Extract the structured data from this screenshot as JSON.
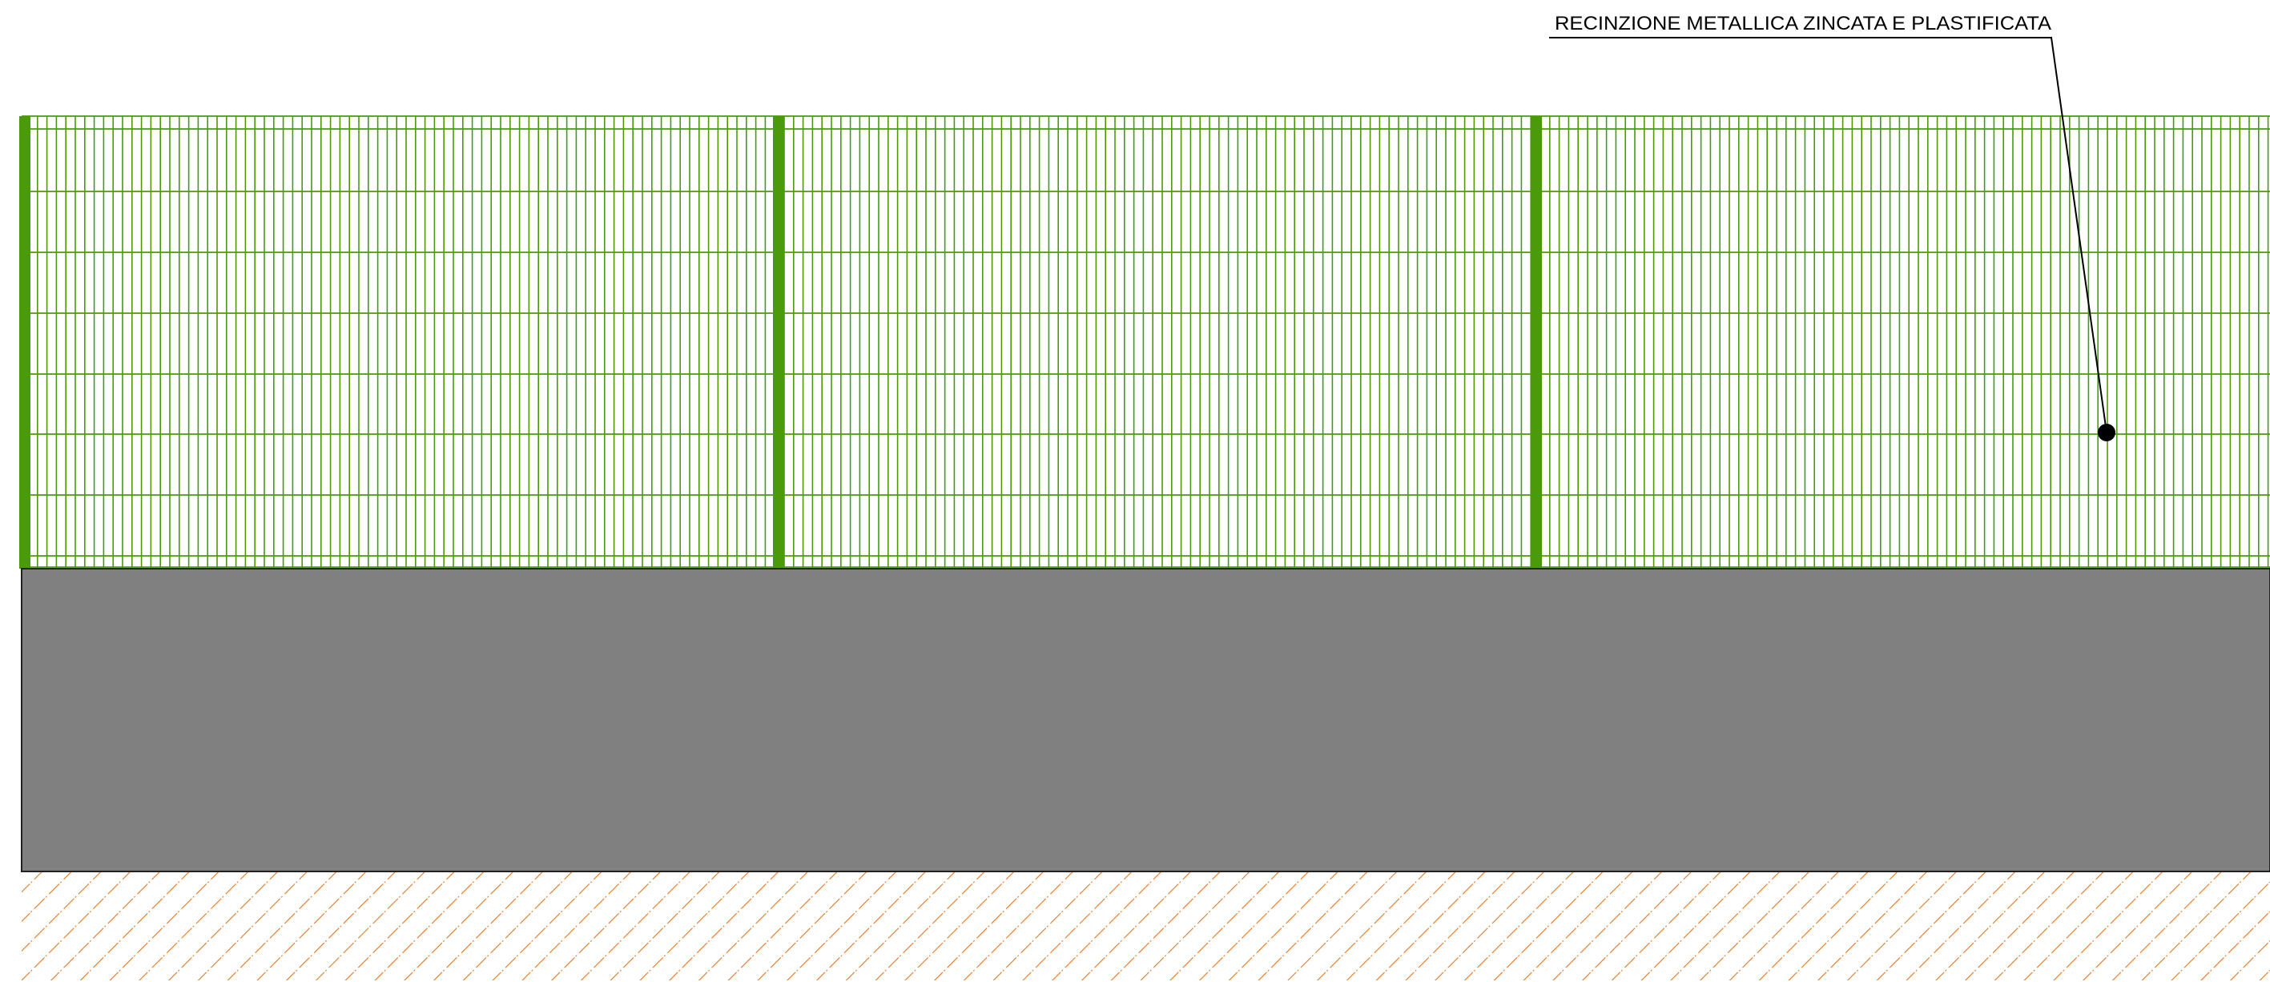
{
  "annotation": {
    "label": "RECINZIONE METALLICA ZINCATA E PLASTIFICATA"
  }
}
